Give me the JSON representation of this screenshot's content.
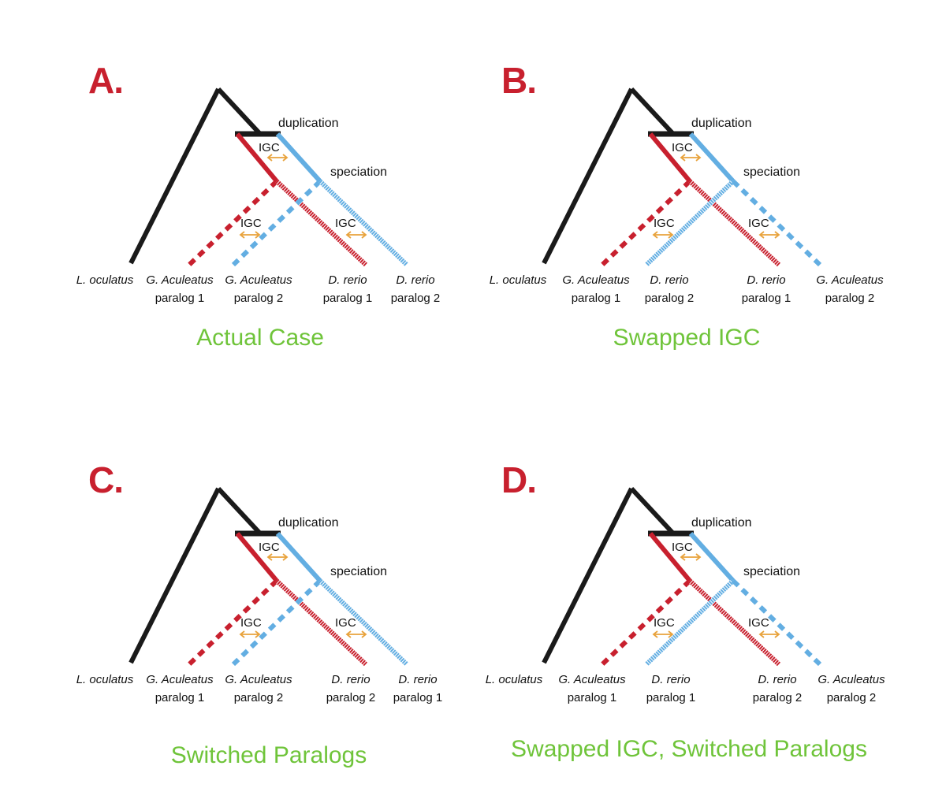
{
  "colors": {
    "trunk": "#1a1a1a",
    "paralog_red": "#c8202e",
    "paralog_blue": "#63aee2",
    "igc_arrow": "#e8a23b",
    "panel_letter": "#c8202e",
    "caption": "#6fc43a"
  },
  "line_styles": [
    "solid",
    "dashed",
    "hatched"
  ],
  "icons": [
    "igc-double-arrow-icon"
  ],
  "labels": {
    "duplication": "duplication",
    "speciation": "speciation",
    "igc": "IGC"
  },
  "panels": [
    {
      "letter": "A.",
      "caption": "Actual Case",
      "taxa": [
        {
          "species": "L. oculatus",
          "paralog": ""
        },
        {
          "species": "G. Aculeatus",
          "paralog": "paralog 1"
        },
        {
          "species": "G. Aculeatus",
          "paralog": "paralog 2"
        },
        {
          "species": "D. rerio",
          "paralog": "paralog 1"
        },
        {
          "species": "D. rerio",
          "paralog": "paralog 2"
        }
      ]
    },
    {
      "letter": "B.",
      "caption": "Swapped IGC",
      "taxa": [
        {
          "species": "L. oculatus",
          "paralog": ""
        },
        {
          "species": "G. Aculeatus",
          "paralog": "paralog 1"
        },
        {
          "species": "D. rerio",
          "paralog": "paralog 2"
        },
        {
          "species": "D. rerio",
          "paralog": "paralog 1"
        },
        {
          "species": "G. Aculeatus",
          "paralog": "paralog 2"
        }
      ]
    },
    {
      "letter": "C.",
      "caption": "Switched Paralogs",
      "taxa": [
        {
          "species": "L. oculatus",
          "paralog": ""
        },
        {
          "species": "G. Aculeatus",
          "paralog": "paralog 1"
        },
        {
          "species": "G. Aculeatus",
          "paralog": "paralog 2"
        },
        {
          "species": "D. rerio",
          "paralog": "paralog 2"
        },
        {
          "species": "D. rerio",
          "paralog": "paralog 1"
        }
      ]
    },
    {
      "letter": "D.",
      "caption": "Swapped IGC, Switched Paralogs",
      "taxa": [
        {
          "species": "L. oculatus",
          "paralog": ""
        },
        {
          "species": "G. Aculeatus",
          "paralog": "paralog 1"
        },
        {
          "species": "D. rerio",
          "paralog": "paralog 1"
        },
        {
          "species": "D. rerio",
          "paralog": "paralog 2"
        },
        {
          "species": "G. Aculeatus",
          "paralog": "paralog 2"
        }
      ]
    }
  ]
}
